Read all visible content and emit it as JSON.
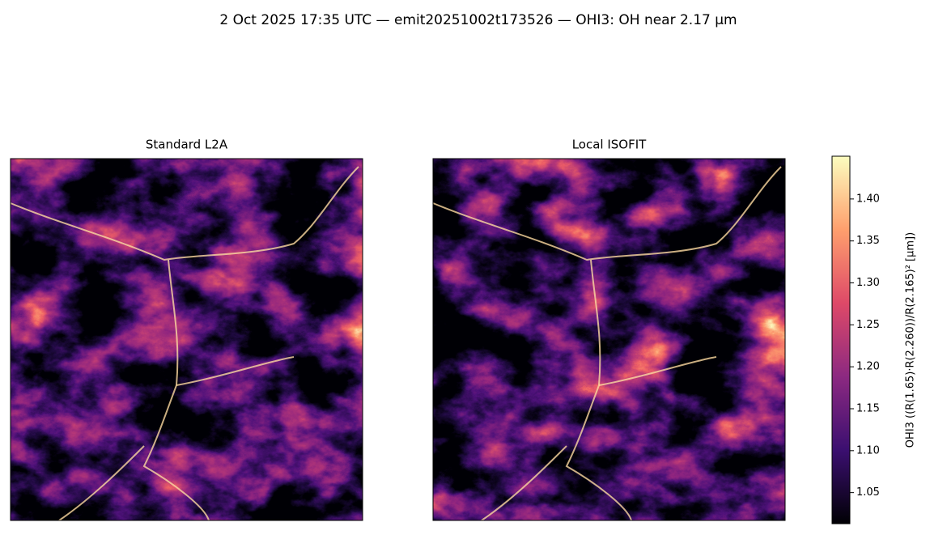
{
  "chart_data": {
    "type": "image",
    "title": "2 Oct 2025 17:35 UTC — emit20251002t173526 — OHI3: OH near 2.17 µm",
    "panels": [
      "Standard L2A",
      "Local ISOFIT"
    ],
    "colorbar_label": "OHI3  ((R(1.65)·R(2.260))/R(2.165)²  [µm])",
    "colormap": "magma",
    "ylim": [
      1.013,
      1.451
    ],
    "yticks": [
      1.05,
      {
        "value": 1.1,
        "label": "1.10"
      },
      1.15,
      {
        "value": 1.2,
        "label": "1.20"
      },
      1.25,
      {
        "value": 1.3,
        "label": "1.30"
      },
      1.35,
      {
        "value": 1.4,
        "label": "1.40"
      }
    ]
  }
}
